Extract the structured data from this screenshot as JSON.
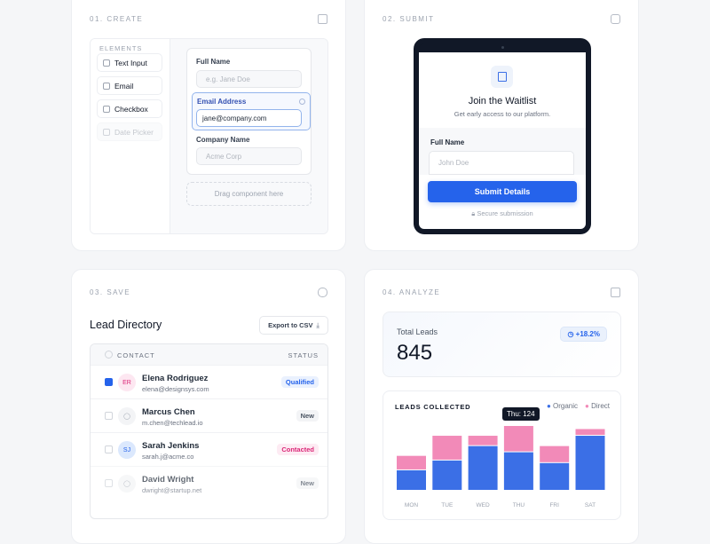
{
  "create": {
    "step": "01. CREATE",
    "elements_heading": "ELEMENTS",
    "elements": [
      {
        "label": "Text Input",
        "icon": "text-input-icon"
      },
      {
        "label": "Email",
        "icon": "mail-icon"
      },
      {
        "label": "Checkbox",
        "icon": "checkbox-icon"
      },
      {
        "label": "Date Picker",
        "icon": "calendar-icon"
      }
    ],
    "fields": [
      {
        "label": "Full Name",
        "placeholder": "e.g. Jane Doe"
      },
      {
        "label": "Email Address",
        "value": "jane@company.com"
      },
      {
        "label": "Company Name",
        "placeholder": "Acme Corp"
      }
    ],
    "dropzone": "Drag component here"
  },
  "submit": {
    "step": "02. SUBMIT",
    "title": "Join the Waitlist",
    "subtitle": "Get early access to our platform.",
    "field_label": "Full Name",
    "field_placeholder": "John Doe",
    "button": "Submit Details",
    "secure": "Secure submission"
  },
  "save": {
    "step": "03. SAVE",
    "title": "Lead Directory",
    "export": "Export to CSV",
    "col_contact": "CONTACT",
    "col_status": "STATUS",
    "rows": [
      {
        "initials": "ER",
        "name": "Elena Rodriguez",
        "email": "elena@designsys.com",
        "status": "Qualified",
        "checked": true
      },
      {
        "initials": "",
        "name": "Marcus Chen",
        "email": "m.chen@techlead.io",
        "status": "New",
        "checked": false
      },
      {
        "initials": "SJ",
        "name": "Sarah Jenkins",
        "email": "sarah.j@acme.co",
        "status": "Contacted",
        "checked": false
      },
      {
        "initials": "",
        "name": "David Wright",
        "email": "dwright@startup.net",
        "status": "New",
        "checked": false
      }
    ]
  },
  "analyze": {
    "step": "04. ANALYZE",
    "total_label": "Total Leads",
    "total_value": "845",
    "change": "+18.2%",
    "tooltip": "Thu: 124"
  },
  "chart_data": {
    "type": "bar",
    "stacked": true,
    "title": "LEADS COLLECTED",
    "categories": [
      "MON",
      "TUE",
      "WED",
      "THU",
      "FRI",
      "SAT"
    ],
    "series": [
      {
        "name": "Organic",
        "color": "#3b6fe6",
        "values": [
          38,
          57,
          85,
          73,
          52,
          105
        ]
      },
      {
        "name": "Direct",
        "color": "#f28ab8",
        "values": [
          28,
          48,
          20,
          51,
          33,
          13
        ]
      }
    ],
    "legend": "top-right"
  },
  "colors": {
    "accent": "#2563eb",
    "organic": "#3b6fe6",
    "direct": "#f28ab8"
  }
}
